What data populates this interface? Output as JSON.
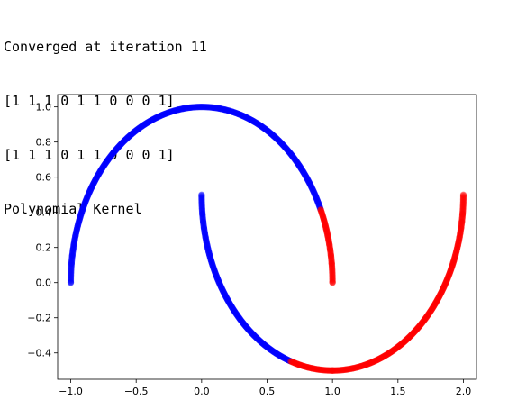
{
  "output": {
    "lines": [
      "Converged at iteration 11",
      "[1 1 1 0 1 1 0 0 0 1]",
      "[1 1 1 0 1 1 0 0 0 1]",
      "Polynomial Kernel"
    ]
  },
  "chart_data": {
    "type": "scatter",
    "title": "",
    "xlabel": "",
    "ylabel": "",
    "xlim": [
      -1.1,
      2.1
    ],
    "ylim": [
      -0.55,
      1.07
    ],
    "x_ticks": [
      -1.0,
      -0.5,
      0.0,
      0.5,
      1.0,
      1.5,
      2.0
    ],
    "x_tick_labels": [
      "−1.0",
      "−0.5",
      "0.0",
      "0.5",
      "1.0",
      "1.5",
      "2.0"
    ],
    "y_ticks": [
      -0.4,
      -0.2,
      0.0,
      0.2,
      0.4,
      0.6,
      0.8,
      1.0
    ],
    "y_tick_labels": [
      "−0.4",
      "−0.2",
      "0.0",
      "0.2",
      "0.4",
      "0.6",
      "0.8",
      "1.0"
    ],
    "grid": false,
    "legend": null,
    "series": [
      {
        "color": "#0000ff",
        "segments": [
          {
            "shape": "upper-half-circle",
            "center": [
              0.0,
              0.0
            ],
            "radius": 1.0,
            "x_from": -1.0,
            "x_to": 0.91
          },
          {
            "shape": "lower-half-circle",
            "center": [
              1.0,
              0.5
            ],
            "radius": 1.0,
            "x_from": 0.0,
            "x_to": 0.68
          }
        ]
      },
      {
        "color": "#ff0000",
        "segments": [
          {
            "shape": "upper-half-circle",
            "center": [
              0.0,
              0.0
            ],
            "radius": 1.0,
            "x_from": 0.91,
            "x_to": 1.0
          },
          {
            "shape": "lower-half-circle",
            "center": [
              1.0,
              0.5
            ],
            "radius": 1.0,
            "x_from": 0.68,
            "x_to": 2.0
          }
        ]
      }
    ]
  }
}
